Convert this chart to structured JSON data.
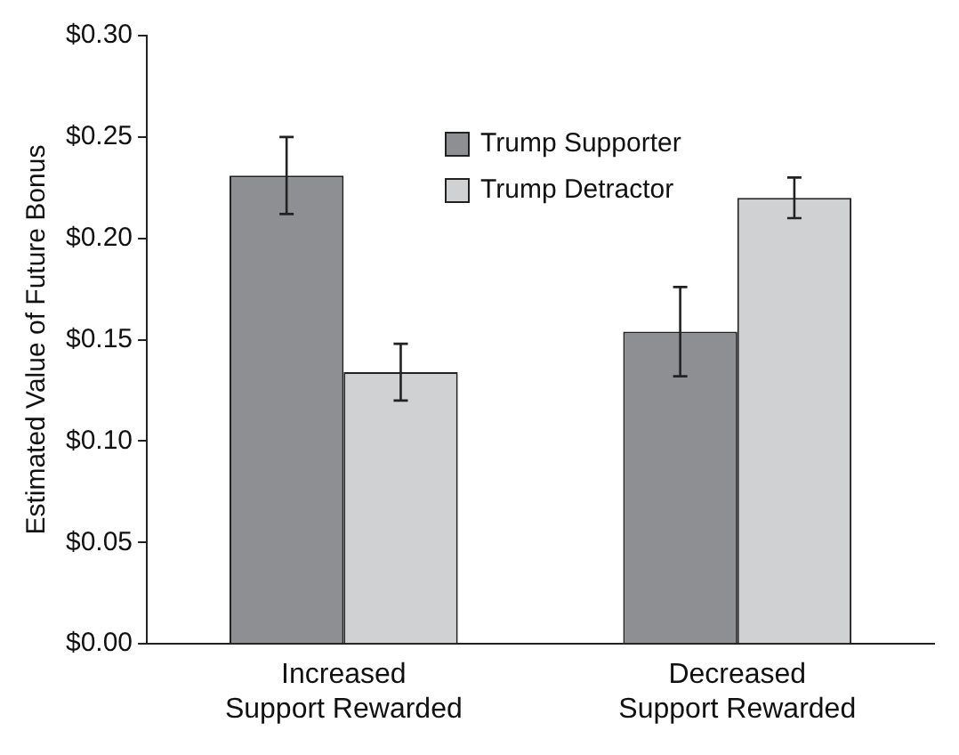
{
  "chart_data": {
    "type": "bar",
    "ylabel": "Estimated Value of Future Bonus",
    "categories": [
      "Increased Support Rewarded",
      "Decreased Support Rewarded"
    ],
    "series": [
      {
        "name": "Trump Supporter",
        "color": "#8e8f92",
        "values": [
          0.231,
          0.154
        ],
        "errors": [
          [
            0.212,
            0.25
          ],
          [
            0.132,
            0.176
          ]
        ]
      },
      {
        "name": "Trump Detractor",
        "color": "#d0d1d3",
        "values": [
          0.134,
          0.22
        ],
        "errors": [
          [
            0.12,
            0.148
          ],
          [
            0.21,
            0.23
          ]
        ]
      }
    ],
    "ylim": [
      0,
      0.3
    ],
    "yticks": [
      {
        "value": 0,
        "label": "$0.00"
      },
      {
        "value": 0.05,
        "label": "$0.05"
      },
      {
        "value": 0.1,
        "label": "$0.10"
      },
      {
        "value": 0.15,
        "label": "$0.15"
      },
      {
        "value": 0.2,
        "label": "$0.20"
      },
      {
        "value": 0.25,
        "label": "$0.25"
      },
      {
        "value": 0.3,
        "label": "$0.30"
      }
    ],
    "grid": false,
    "legend": "top"
  }
}
